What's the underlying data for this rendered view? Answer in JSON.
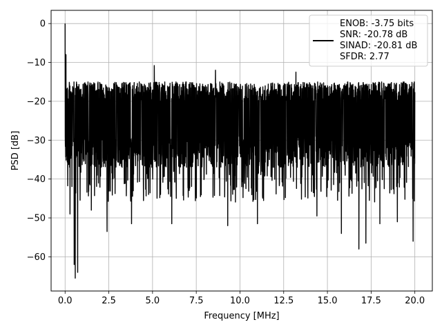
{
  "chart_data": {
    "type": "line",
    "title": "",
    "xlabel": "Frequency [MHz]",
    "ylabel": "PSD [dB]",
    "xlim": [
      -0.8,
      21.0
    ],
    "ylim": [
      -68.8,
      3.4
    ],
    "xticks": [
      0.0,
      2.5,
      5.0,
      7.5,
      10.0,
      12.5,
      15.0,
      17.5,
      20.0
    ],
    "xtick_labels": [
      "0.0",
      "2.5",
      "5.0",
      "7.5",
      "10.0",
      "12.5",
      "15.0",
      "17.5",
      "20.0"
    ],
    "yticks": [
      0,
      -10,
      -20,
      -30,
      -40,
      -50,
      -60
    ],
    "ytick_labels": [
      "0",
      "−10",
      "−20",
      "−30",
      "−40",
      "−50",
      "−60"
    ],
    "grid": true,
    "legend_position": "top-right",
    "series": [
      {
        "name": "ENOB: -3.75 bits\nSNR: -20.78 dB\nSINAD: -20.81 dB\nSFDR: 2.77",
        "legend_lines": [
          "ENOB: -3.75 bits",
          "SNR: -20.78 dB",
          "SINAD: -20.81 dB",
          "SFDR: 2.77"
        ],
        "color": "#000000",
        "x_range": [
          0.0,
          20.0
        ],
        "noise_floor_band": [
          -35,
          -15
        ],
        "peaks": [
          {
            "x": 0.0,
            "y": 0.0
          },
          {
            "x": 0.05,
            "y": -8.0
          },
          {
            "x": 5.1,
            "y": -10.8
          },
          {
            "x": 8.6,
            "y": -12.0
          },
          {
            "x": 13.2,
            "y": -12.5
          }
        ],
        "dips": [
          {
            "x": 0.28,
            "y": -49.0
          },
          {
            "x": 0.52,
            "y": -62.0
          },
          {
            "x": 0.58,
            "y": -65.5
          },
          {
            "x": 0.72,
            "y": -64.0
          },
          {
            "x": 1.5,
            "y": -48.0
          },
          {
            "x": 2.4,
            "y": -53.5
          },
          {
            "x": 3.8,
            "y": -51.5
          },
          {
            "x": 6.1,
            "y": -51.5
          },
          {
            "x": 9.3,
            "y": -52.0
          },
          {
            "x": 11.0,
            "y": -51.5
          },
          {
            "x": 14.4,
            "y": -49.5
          },
          {
            "x": 15.8,
            "y": -54.0
          },
          {
            "x": 16.8,
            "y": -58.0
          },
          {
            "x": 17.2,
            "y": -56.5
          },
          {
            "x": 18.0,
            "y": -51.5
          },
          {
            "x": 19.0,
            "y": -51.0
          },
          {
            "x": 19.9,
            "y": -56.0
          }
        ]
      }
    ]
  }
}
